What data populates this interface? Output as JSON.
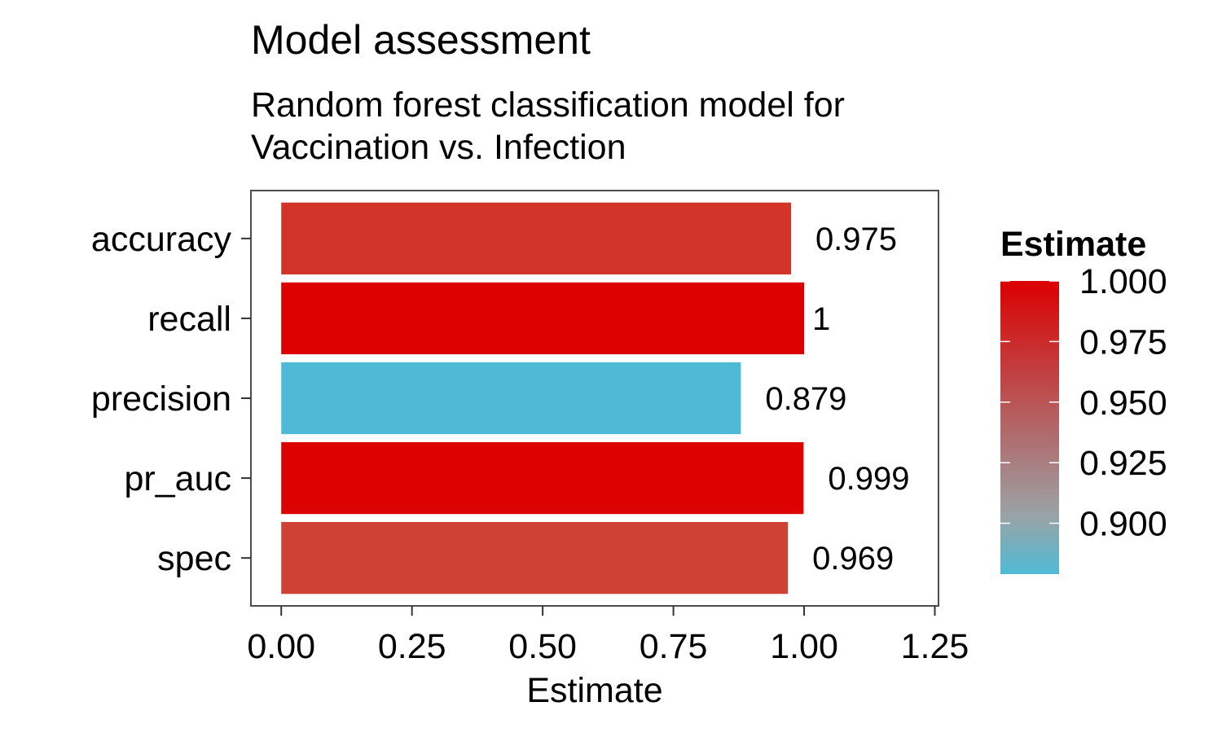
{
  "chart_data": {
    "type": "bar",
    "orientation": "horizontal",
    "title": "Model assessment",
    "subtitle_lines": [
      "Random forest classification model for",
      "Vaccination vs. Infection"
    ],
    "xlabel": "Estimate",
    "ylabel": "",
    "xlim": [
      -0.058,
      1.257
    ],
    "x_ticks": [
      0,
      0.25,
      0.5,
      0.75,
      1.0,
      1.25
    ],
    "x_tick_labels": [
      "0.00",
      "0.25",
      "0.50",
      "0.75",
      "1.00",
      "1.25"
    ],
    "categories": [
      "accuracy",
      "recall",
      "precision",
      "pr_auc",
      "spec"
    ],
    "values": [
      0.975,
      1.0,
      0.879,
      0.999,
      0.969
    ],
    "value_labels": [
      "0.975",
      "1",
      "0.879",
      "0.999",
      "0.969"
    ],
    "grid": false,
    "legend": {
      "title": "Estimate",
      "placement": "right",
      "type": "colorbar",
      "range": [
        0.879,
        1.0
      ],
      "ticks": [
        0.9,
        0.925,
        0.95,
        0.975,
        1.0
      ],
      "tick_labels": [
        "0.900",
        "0.925",
        "0.950",
        "0.975",
        "1.000"
      ],
      "low_color": "#4fbad6",
      "high_color": "#dc0000"
    }
  }
}
